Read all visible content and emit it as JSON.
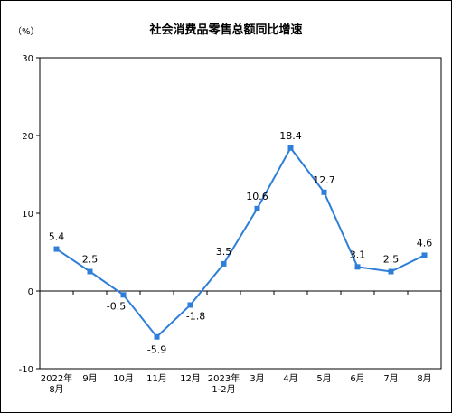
{
  "chart_data": {
    "type": "line",
    "title": "社会消费品零售总额同比增速",
    "ylabel": "（%）",
    "xlabel": "",
    "ylim": [
      -10,
      30
    ],
    "yticks": [
      "30",
      "20",
      "10",
      "0",
      "-10"
    ],
    "grid": false,
    "line_color": "#2f7ed8",
    "categories": [
      [
        "2022年",
        "8月"
      ],
      [
        "9月"
      ],
      [
        "10月"
      ],
      [
        "11月"
      ],
      [
        "12月"
      ],
      [
        "2023年",
        "1-2月"
      ],
      [
        "3月"
      ],
      [
        "4月"
      ],
      [
        "5月"
      ],
      [
        "6月"
      ],
      [
        "7月"
      ],
      [
        "8月"
      ]
    ],
    "values": [
      5.4,
      2.5,
      -0.5,
      -5.9,
      -1.8,
      3.5,
      10.6,
      18.4,
      12.7,
      3.1,
      2.5,
      4.6
    ],
    "data_labels": [
      "5.4",
      "2.5",
      "-0.5",
      "-5.9",
      "-1.8",
      "3.5",
      "10.6",
      "18.4",
      "12.7",
      "3.1",
      "2.5",
      "4.6"
    ]
  }
}
